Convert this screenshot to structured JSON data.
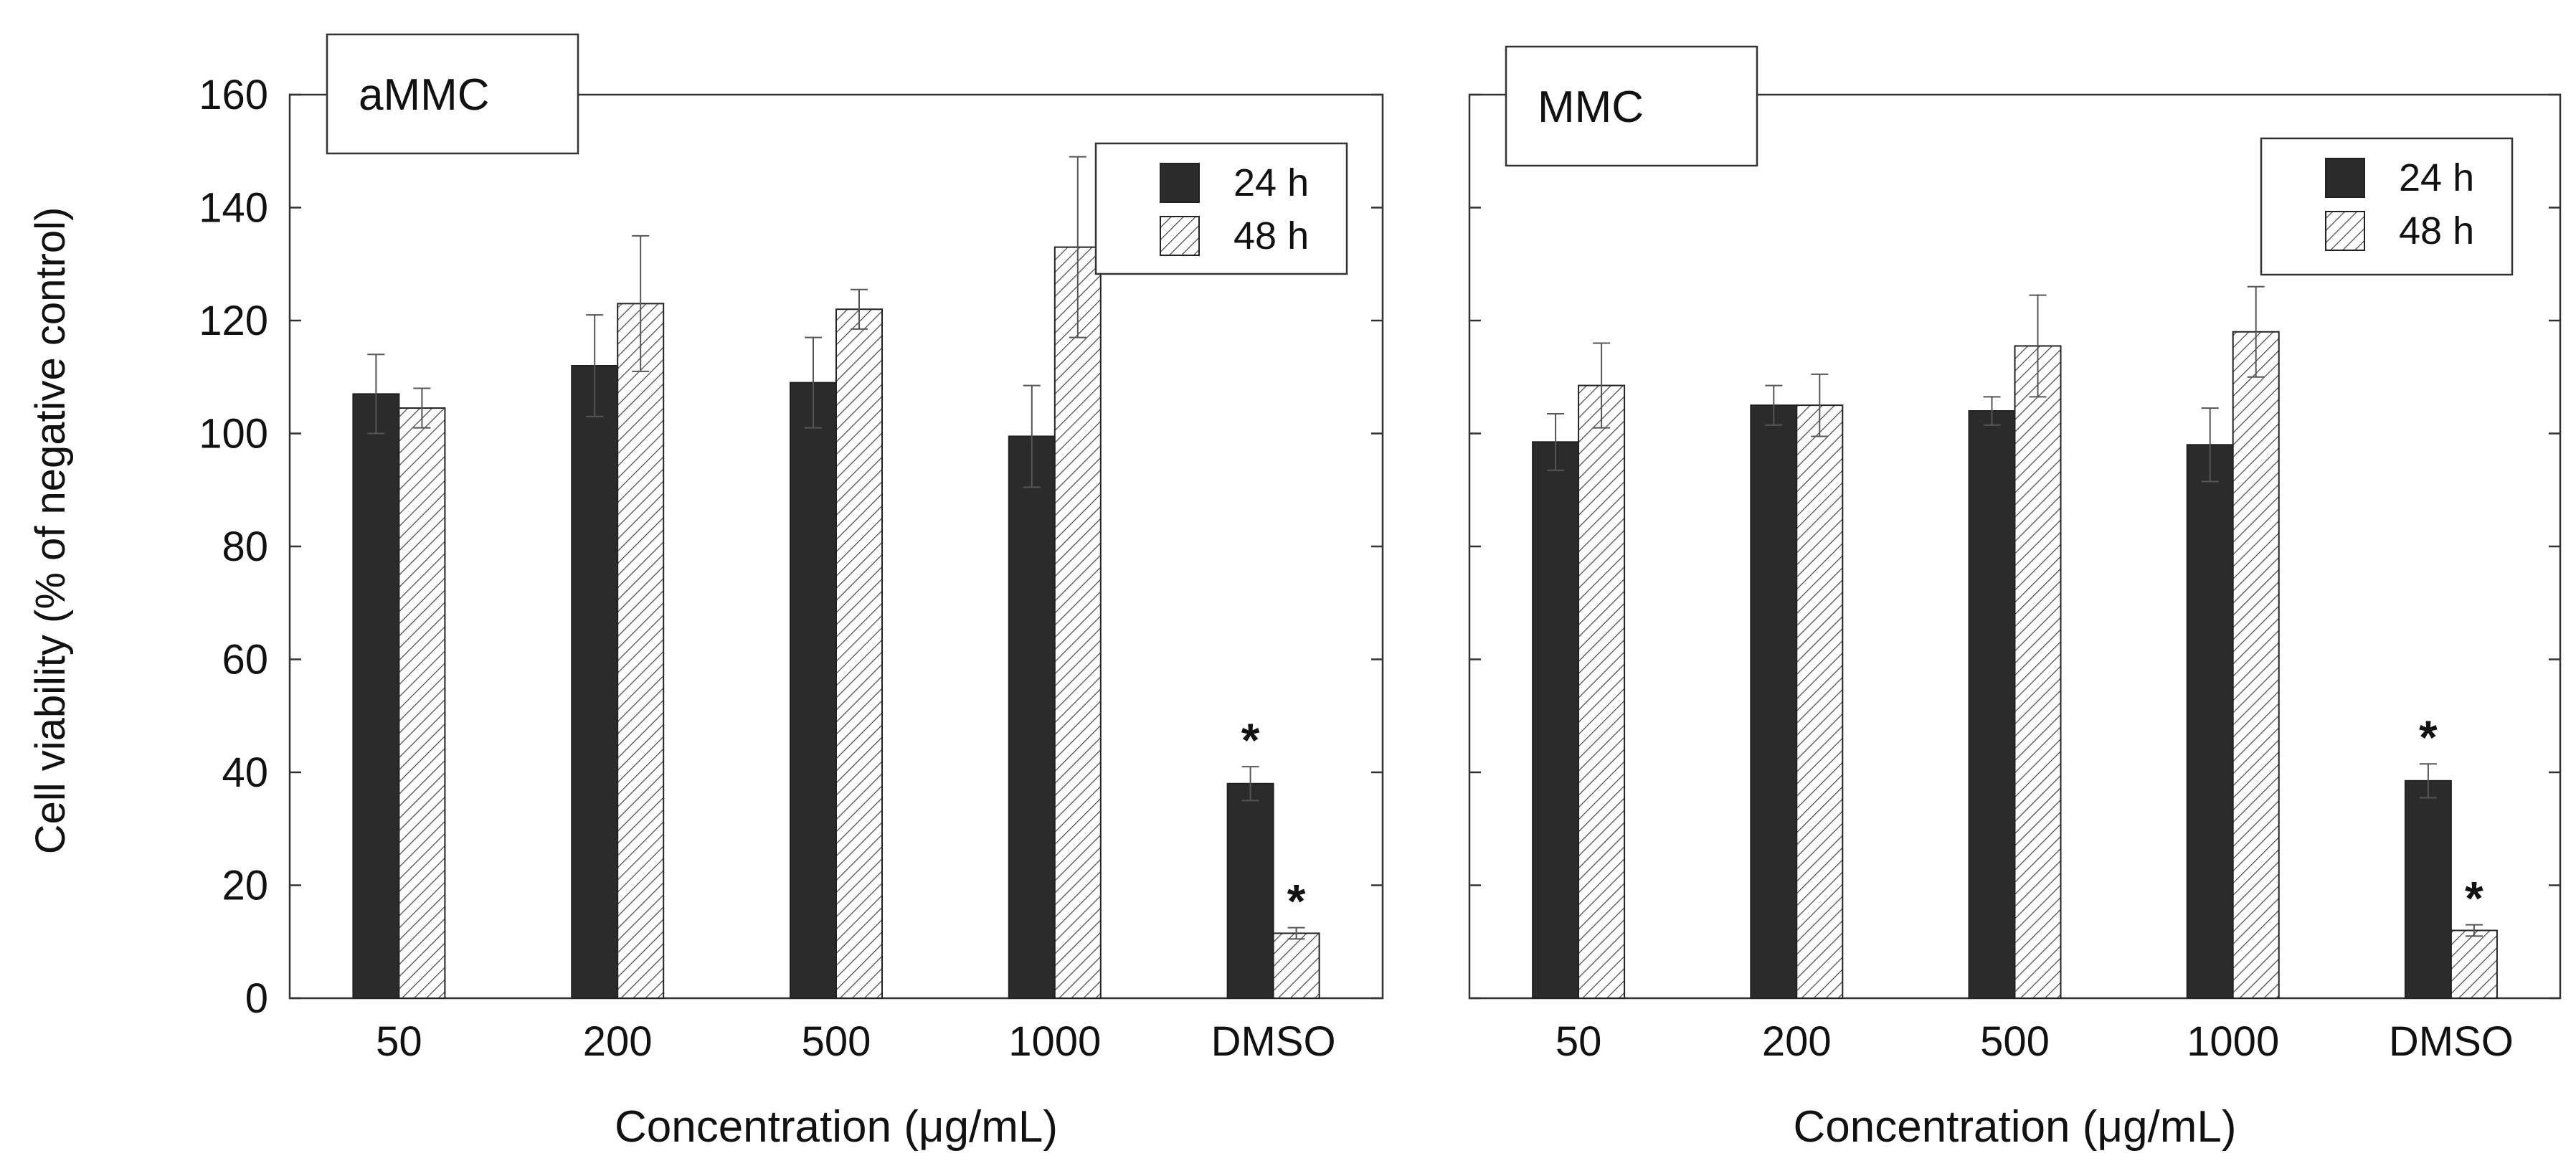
{
  "figure": {
    "ylabel": "Cell viability (% of negative control)",
    "xlabel": "Concentration (μg/mL)"
  },
  "colors": {
    "bar_24h": "#2b2b2b",
    "bar_48h_hatch": "#444444",
    "axis": "#333333"
  },
  "chart_data": [
    {
      "type": "bar",
      "title": "aMMC",
      "categories": [
        "50",
        "200",
        "500",
        "1000",
        "DMSO"
      ],
      "xlabel": "Concentration (μg/mL)",
      "ylabel": "Cell viability (% of negative control)",
      "ylim": [
        0,
        160
      ],
      "yticks": [
        "0",
        "20",
        "40",
        "60",
        "80",
        "100",
        "120",
        "140",
        "160"
      ],
      "legend": "top-right",
      "series": [
        {
          "name": "24 h",
          "values": [
            107,
            112,
            109,
            99.5,
            38
          ],
          "errors": [
            7,
            9,
            8,
            9,
            3
          ]
        },
        {
          "name": "48 h",
          "values": [
            104.5,
            123,
            122,
            133,
            11.5
          ],
          "errors": [
            3.5,
            12,
            3.5,
            16,
            1
          ]
        }
      ],
      "annotations": [
        {
          "category": "DMSO",
          "series": "24 h",
          "text": "*"
        },
        {
          "category": "DMSO",
          "series": "48 h",
          "text": "*"
        }
      ]
    },
    {
      "type": "bar",
      "title": "MMC",
      "categories": [
        "50",
        "200",
        "500",
        "1000",
        "DMSO"
      ],
      "xlabel": "Concentration (μg/mL)",
      "ylim": [
        0,
        160
      ],
      "legend": "top-right",
      "series": [
        {
          "name": "24 h",
          "values": [
            98.5,
            105,
            104,
            98,
            38.5
          ],
          "errors": [
            5,
            3.5,
            2.5,
            6.5,
            3
          ]
        },
        {
          "name": "48 h",
          "values": [
            108.5,
            105,
            115.5,
            118,
            12
          ],
          "errors": [
            7.5,
            5.5,
            9,
            8,
            1
          ]
        }
      ],
      "annotations": [
        {
          "category": "DMSO",
          "series": "24 h",
          "text": "*"
        },
        {
          "category": "DMSO",
          "series": "48 h",
          "text": "*"
        }
      ]
    }
  ]
}
